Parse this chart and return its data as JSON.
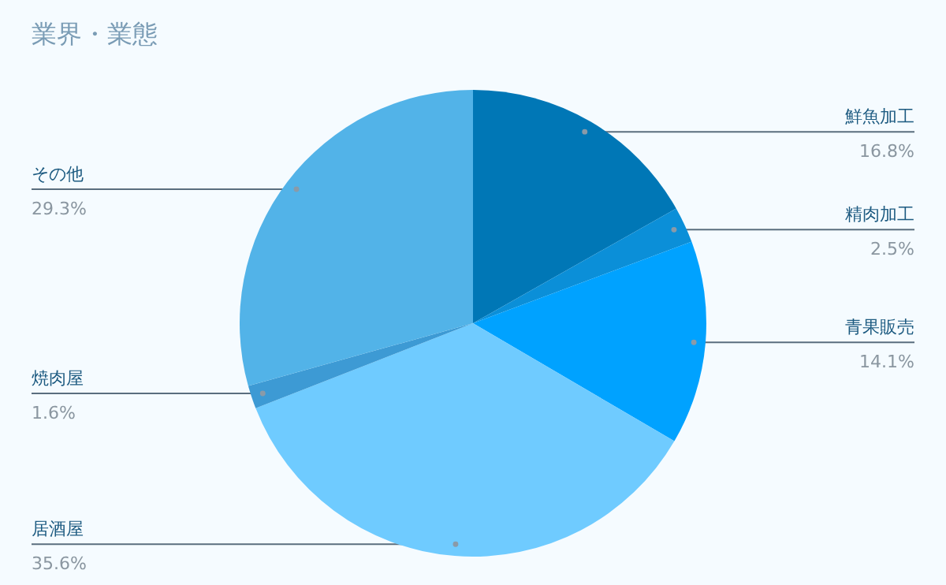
{
  "chart_data": {
    "type": "pie",
    "title": "業界・業態",
    "categories": [
      "鮮魚加工",
      "精肉加工",
      "青果販売",
      "居酒屋",
      "焼肉屋",
      "その他"
    ],
    "values": [
      16.8,
      2.5,
      14.1,
      35.6,
      1.6,
      29.3
    ],
    "value_labels": [
      "16.8%",
      "2.5%",
      "14.1%",
      "35.6%",
      "1.6%",
      "29.3%"
    ],
    "colors": [
      "#0077b6",
      "#0b8fd8",
      "#00a2ff",
      "#6fcbff",
      "#3d9ad4",
      "#52b3e8"
    ]
  }
}
